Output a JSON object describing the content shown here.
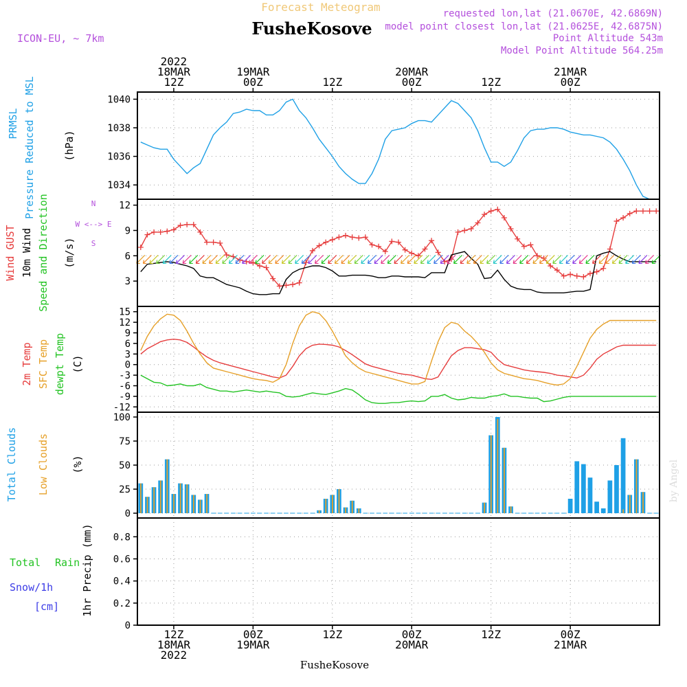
{
  "header": {
    "title": "Forecast Meteogram",
    "location": "FusheKosove",
    "model": "ICON-EU, ~ 7km",
    "requested": "requested lon,lat (21.0670E, 42.6869N)",
    "closest": "model point closest lon,lat (21.0625E, 42.6875N)",
    "altitude": "Point Altitude 543m",
    "model_altitude": "Model Point Altitude 564.25m",
    "footer": "FusheKosove",
    "watermark": "by Angel"
  },
  "colors": {
    "prmsl": "#1ea0e6",
    "gust": "#e63c3c",
    "wind": "#000000",
    "dir": "#23c323",
    "t2m": "#e63c3c",
    "sfc": "#e6a028",
    "dew": "#23c323",
    "total_clouds": "#1ea0e6",
    "low_clouds": "#e6a028",
    "rain": "#23c323",
    "snow": "#3c3ce6",
    "meta": "#b450dc",
    "title": "#f0c878"
  },
  "time_axis": {
    "top": [
      {
        "t": 12,
        "lines": [
          "2022",
          "18MAR",
          "12Z"
        ]
      },
      {
        "t": 24,
        "lines": [
          "19MAR",
          "00Z"
        ]
      },
      {
        "t": 36,
        "lines": [
          "12Z"
        ]
      },
      {
        "t": 48,
        "lines": [
          "20MAR",
          "00Z"
        ]
      },
      {
        "t": 60,
        "lines": [
          "12Z"
        ]
      },
      {
        "t": 72,
        "lines": [
          "21MAR",
          "00Z"
        ]
      }
    ],
    "bottom": [
      {
        "t": 12,
        "lines": [
          "12Z",
          "18MAR",
          "2022"
        ]
      },
      {
        "t": 24,
        "lines": [
          "00Z",
          "19MAR"
        ]
      },
      {
        "t": 36,
        "lines": [
          "12Z"
        ]
      },
      {
        "t": 48,
        "lines": [
          "00Z",
          "20MAR"
        ]
      },
      {
        "t": 60,
        "lines": [
          "12Z"
        ]
      },
      {
        "t": 72,
        "lines": [
          "00Z",
          "21MAR"
        ]
      }
    ]
  },
  "panel_labels": {
    "p1": {
      "a": "PRMSL",
      "b": "Pressure Reduced to MSL",
      "unit": "(hPa)"
    },
    "p2": {
      "a": "Wind GUST",
      "b": "10m Wind",
      "c": "Speed and Direction",
      "unit": "(m/s)",
      "compass": "W <--> E",
      "compass_n": "N",
      "compass_s": "S"
    },
    "p3": {
      "a": "2m Temp",
      "b": "SFC Temp",
      "c": "dewpt Temp",
      "unit": "(C)"
    },
    "p4": {
      "a": "Total Clouds",
      "b": "Low Clouds",
      "unit": "(%)"
    },
    "p5": {
      "a": "Total",
      "a2": "Rain",
      "b": "Snow/1h",
      "b2": "[cm]",
      "unit": "1hr Precip (mm)"
    }
  },
  "chart_data": [
    {
      "type": "line",
      "x": [
        7,
        8,
        9,
        10,
        11,
        12,
        13,
        14,
        15,
        16,
        17,
        18,
        19,
        20,
        21,
        22,
        23,
        24,
        25,
        26,
        27,
        28,
        29,
        30,
        31,
        32,
        33,
        34,
        35,
        36,
        37,
        38,
        39,
        40,
        41,
        42,
        43,
        44,
        45,
        46,
        47,
        48,
        49,
        50,
        51,
        52,
        53,
        54,
        55,
        56,
        57,
        58,
        59,
        60,
        61,
        62,
        63,
        64,
        65,
        66,
        67,
        68,
        69,
        70,
        71,
        72,
        73,
        74,
        75,
        76,
        77,
        78,
        79,
        80,
        81,
        82,
        83,
        84,
        85
      ],
      "series": [
        {
          "name": "PRMSL",
          "values": [
            1037.0,
            1036.8,
            1036.6,
            1036.5,
            1036.5,
            1035.8,
            1035.3,
            1034.8,
            1035.2,
            1035.5,
            1036.5,
            1037.5,
            1038.0,
            1038.4,
            1039.0,
            1039.1,
            1039.3,
            1039.2,
            1039.2,
            1038.9,
            1038.9,
            1039.2,
            1039.8,
            1040.0,
            1039.2,
            1038.7,
            1038.0,
            1037.2,
            1036.6,
            1036.0,
            1035.3,
            1034.8,
            1034.4,
            1034.1,
            1034.1,
            1034.8,
            1035.8,
            1037.2,
            1037.8,
            1037.9,
            1038.0,
            1038.3,
            1038.5,
            1038.5,
            1038.4,
            1038.9,
            1039.4,
            1039.9,
            1039.7,
            1039.2,
            1038.7,
            1037.8,
            1036.6,
            1035.6,
            1035.6,
            1035.3,
            1035.6,
            1036.4,
            1037.3,
            1037.8,
            1037.9,
            1037.9,
            1038.0,
            1038.0,
            1037.9,
            1037.7,
            1037.6,
            1037.5,
            1037.5,
            1037.4,
            1037.3,
            1037.0,
            1036.5,
            1035.8,
            1035.0,
            1034.0,
            1033.2,
            1033.0,
            1033.0
          ]
        }
      ],
      "xlabel": "",
      "ylabel": "(hPa)",
      "ylim": [
        1033,
        1040.5
      ],
      "yticks": [
        1034,
        1036,
        1038,
        1040
      ],
      "grid": true
    },
    {
      "type": "line",
      "x": [
        7,
        8,
        9,
        10,
        11,
        12,
        13,
        14,
        15,
        16,
        17,
        18,
        19,
        20,
        21,
        22,
        23,
        24,
        25,
        26,
        27,
        28,
        29,
        30,
        31,
        32,
        33,
        34,
        35,
        36,
        37,
        38,
        39,
        40,
        41,
        42,
        43,
        44,
        45,
        46,
        47,
        48,
        49,
        50,
        51,
        52,
        53,
        54,
        55,
        56,
        57,
        58,
        59,
        60,
        61,
        62,
        63,
        64,
        65,
        66,
        67,
        68,
        69,
        70,
        71,
        72,
        73,
        74,
        75,
        76,
        77,
        78,
        79,
        80,
        81,
        82,
        83,
        84,
        85
      ],
      "series": [
        {
          "name": "Wind GUST",
          "values": [
            7.0,
            8.5,
            8.8,
            8.8,
            8.9,
            9.1,
            9.6,
            9.7,
            9.7,
            8.8,
            7.6,
            7.6,
            7.5,
            6.1,
            5.9,
            5.5,
            5.3,
            5.2,
            4.8,
            4.6,
            3.3,
            2.4,
            2.5,
            2.6,
            2.8,
            5.2,
            6.6,
            7.2,
            7.6,
            7.9,
            8.2,
            8.4,
            8.2,
            8.1,
            8.2,
            7.3,
            7.1,
            6.5,
            7.7,
            7.6,
            6.7,
            6.3,
            6.0,
            6.8,
            7.8,
            6.4,
            5.3,
            5.6,
            8.8,
            9.0,
            9.2,
            9.9,
            10.9,
            11.3,
            11.5,
            10.5,
            9.2,
            8.0,
            7.1,
            7.3,
            6.0,
            5.7,
            4.8,
            4.3,
            3.6,
            3.8,
            3.6,
            3.5,
            3.9,
            4.1,
            4.5,
            6.8,
            10.1,
            10.5,
            11.0,
            11.3,
            11.3,
            11.3,
            11.3
          ]
        },
        {
          "name": "10m Wind",
          "values": [
            4.1,
            5.0,
            5.1,
            5.2,
            5.3,
            5.2,
            5.0,
            4.8,
            4.5,
            3.6,
            3.4,
            3.4,
            3.0,
            2.6,
            2.4,
            2.2,
            1.8,
            1.5,
            1.4,
            1.4,
            1.5,
            1.5,
            3.2,
            4.0,
            4.4,
            4.6,
            4.8,
            4.8,
            4.6,
            4.2,
            3.6,
            3.6,
            3.7,
            3.7,
            3.7,
            3.6,
            3.4,
            3.4,
            3.6,
            3.6,
            3.5,
            3.5,
            3.5,
            3.4,
            4.0,
            4.0,
            4.0,
            6.1,
            6.3,
            6.5,
            5.7,
            5.0,
            3.3,
            3.4,
            4.3,
            3.2,
            2.4,
            2.1,
            2.0,
            2.0,
            1.7,
            1.6,
            1.6,
            1.6,
            1.6,
            1.7,
            1.8,
            1.8,
            2.0,
            6.0,
            6.3,
            6.5,
            6.0,
            5.6,
            5.3,
            5.3,
            5.3,
            5.3,
            5.3
          ]
        }
      ],
      "xlabel": "",
      "ylabel": "(m/s)",
      "ylim": [
        0,
        12.7
      ],
      "yticks": [
        3,
        6,
        9,
        12
      ],
      "grid": true
    },
    {
      "type": "line",
      "x": [
        7,
        8,
        9,
        10,
        11,
        12,
        13,
        14,
        15,
        16,
        17,
        18,
        19,
        20,
        21,
        22,
        23,
        24,
        25,
        26,
        27,
        28,
        29,
        30,
        31,
        32,
        33,
        34,
        35,
        36,
        37,
        38,
        39,
        40,
        41,
        42,
        43,
        44,
        45,
        46,
        47,
        48,
        49,
        50,
        51,
        52,
        53,
        54,
        55,
        56,
        57,
        58,
        59,
        60,
        61,
        62,
        63,
        64,
        65,
        66,
        67,
        68,
        69,
        70,
        71,
        72,
        73,
        74,
        75,
        76,
        77,
        78,
        79,
        80,
        81,
        82,
        83,
        84,
        85
      ],
      "series": [
        {
          "name": "2m Temp",
          "values": [
            3.0,
            4.5,
            5.5,
            6.5,
            7.0,
            7.2,
            7.0,
            6.3,
            5.0,
            3.5,
            2.2,
            1.2,
            0.5,
            0.0,
            -0.5,
            -1.0,
            -1.5,
            -2.0,
            -2.5,
            -3.0,
            -3.5,
            -3.8,
            -3.0,
            -0.5,
            2.5,
            4.5,
            5.5,
            5.8,
            5.7,
            5.5,
            5.0,
            4.0,
            2.8,
            1.5,
            0.2,
            -0.5,
            -1.0,
            -1.5,
            -2.0,
            -2.5,
            -2.8,
            -3.0,
            -3.5,
            -4.0,
            -4.2,
            -3.5,
            -0.5,
            2.5,
            4.0,
            4.8,
            4.8,
            4.5,
            4.2,
            3.5,
            1.5,
            0.0,
            -0.5,
            -1.0,
            -1.5,
            -1.8,
            -2.0,
            -2.2,
            -2.5,
            -3.0,
            -3.2,
            -3.5,
            -3.8,
            -3.0,
            -1.0,
            1.5,
            3.0,
            4.0,
            5.0,
            5.5,
            5.5,
            5.5,
            5.5,
            5.5,
            5.5
          ]
        },
        {
          "name": "SFC Temp",
          "values": [
            4.0,
            8.0,
            11.0,
            13.0,
            14.3,
            14.0,
            12.5,
            9.5,
            6.0,
            3.0,
            0.5,
            -1.0,
            -1.5,
            -2.0,
            -2.5,
            -3.0,
            -3.5,
            -4.0,
            -4.3,
            -4.5,
            -5.0,
            -4.0,
            0.0,
            6.0,
            11.0,
            14.0,
            15.0,
            14.5,
            12.5,
            9.5,
            6.0,
            2.5,
            0.5,
            -1.0,
            -2.0,
            -2.5,
            -3.0,
            -3.5,
            -4.0,
            -4.5,
            -5.0,
            -5.5,
            -5.5,
            -4.8,
            1.0,
            6.5,
            10.5,
            12.0,
            11.5,
            9.5,
            8.0,
            6.0,
            3.5,
            0.5,
            -1.5,
            -2.5,
            -3.0,
            -3.5,
            -4.0,
            -4.2,
            -4.5,
            -5.0,
            -5.5,
            -5.8,
            -5.5,
            -4.0,
            -0.5,
            3.5,
            7.5,
            10.0,
            11.5,
            12.5,
            12.5,
            12.5,
            12.5,
            12.5,
            12.5,
            12.5,
            12.5
          ]
        },
        {
          "name": "dewpt Temp",
          "values": [
            -3.0,
            -4.0,
            -5.0,
            -5.2,
            -6.0,
            -5.8,
            -5.5,
            -6.0,
            -6.0,
            -5.5,
            -6.5,
            -7.0,
            -7.5,
            -7.5,
            -7.8,
            -7.5,
            -7.2,
            -7.5,
            -7.8,
            -7.5,
            -7.8,
            -8.0,
            -9.0,
            -9.2,
            -9.0,
            -8.5,
            -8.0,
            -8.3,
            -8.5,
            -8.0,
            -7.5,
            -6.8,
            -7.2,
            -8.5,
            -10.0,
            -10.8,
            -11.0,
            -11.0,
            -10.8,
            -10.8,
            -10.5,
            -10.3,
            -10.5,
            -10.3,
            -9.0,
            -9.0,
            -8.5,
            -9.5,
            -10.0,
            -9.8,
            -9.3,
            -9.5,
            -9.5,
            -9.0,
            -8.8,
            -8.3,
            -9.0,
            -9.0,
            -9.3,
            -9.5,
            -9.5,
            -10.5,
            -10.3,
            -9.8,
            -9.3,
            -9.0,
            -9.0,
            -9.0,
            -9.0,
            -9.0,
            -9.0,
            -9.0,
            -9.0,
            -9.0,
            -9.0,
            -9.0,
            -9.0,
            -9.0,
            -9.0
          ]
        }
      ],
      "xlabel": "",
      "ylabel": "(C)",
      "ylim": [
        -13.5,
        16.5
      ],
      "yticks": [
        -12,
        -9,
        -6,
        -3,
        0,
        3,
        6,
        9,
        12,
        15
      ],
      "grid": true
    },
    {
      "type": "bar",
      "x": [
        7,
        8,
        9,
        10,
        11,
        12,
        13,
        14,
        15,
        16,
        17,
        18,
        19,
        20,
        21,
        22,
        23,
        24,
        25,
        26,
        27,
        28,
        29,
        30,
        31,
        32,
        33,
        34,
        35,
        36,
        37,
        38,
        39,
        40,
        41,
        42,
        43,
        44,
        45,
        46,
        47,
        48,
        49,
        50,
        51,
        52,
        53,
        54,
        55,
        56,
        57,
        58,
        59,
        60,
        61,
        62,
        63,
        64,
        65,
        66,
        67,
        68,
        69,
        70,
        71,
        72,
        73,
        74,
        75,
        76,
        77,
        78,
        79,
        80,
        81,
        82,
        83,
        84,
        85
      ],
      "series": [
        {
          "name": "Total Clouds",
          "values": [
            31,
            17,
            27,
            34,
            56,
            20,
            31,
            30,
            19,
            14,
            20,
            0,
            0,
            0,
            0,
            0,
            0,
            0,
            0,
            0,
            0,
            0,
            0,
            0,
            0,
            0,
            0,
            3,
            15,
            19,
            25,
            6,
            13,
            5,
            0,
            0,
            0,
            0,
            0,
            0,
            0,
            0,
            0,
            0,
            0,
            0,
            0,
            0,
            0,
            0,
            0,
            0,
            11,
            81,
            100,
            68,
            7,
            0,
            0,
            0,
            0,
            0,
            0,
            0,
            0,
            15,
            54,
            51,
            37,
            12,
            5,
            34,
            50,
            78,
            19,
            56,
            22,
            0,
            0
          ]
        },
        {
          "name": "Low Clouds",
          "values": [
            31,
            17,
            27,
            34,
            56,
            20,
            31,
            30,
            19,
            14,
            20,
            0,
            0,
            0,
            0,
            0,
            0,
            0,
            0,
            0,
            0,
            0,
            0,
            0,
            0,
            0,
            0,
            3,
            15,
            19,
            25,
            6,
            13,
            5,
            0,
            0,
            0,
            0,
            0,
            0,
            0,
            0,
            0,
            0,
            0,
            0,
            0,
            0,
            0,
            0,
            0,
            0,
            11,
            81,
            98,
            68,
            7,
            0,
            0,
            0,
            0,
            0,
            0,
            0,
            0,
            0,
            0,
            0,
            0,
            0,
            0,
            0,
            0,
            4,
            19,
            56,
            22,
            0,
            0
          ]
        }
      ],
      "xlabel": "",
      "ylabel": "(%)",
      "ylim": [
        -5,
        105
      ],
      "yticks": [
        0,
        25,
        50,
        75,
        100
      ],
      "grid": true
    },
    {
      "type": "bar",
      "x": [],
      "series": [],
      "xlabel": "",
      "ylabel": "1hr Precip (mm)",
      "ylim": [
        0,
        0.97
      ],
      "yticks": [
        0,
        0.2,
        0.4,
        0.6,
        0.8
      ],
      "grid": true
    }
  ]
}
